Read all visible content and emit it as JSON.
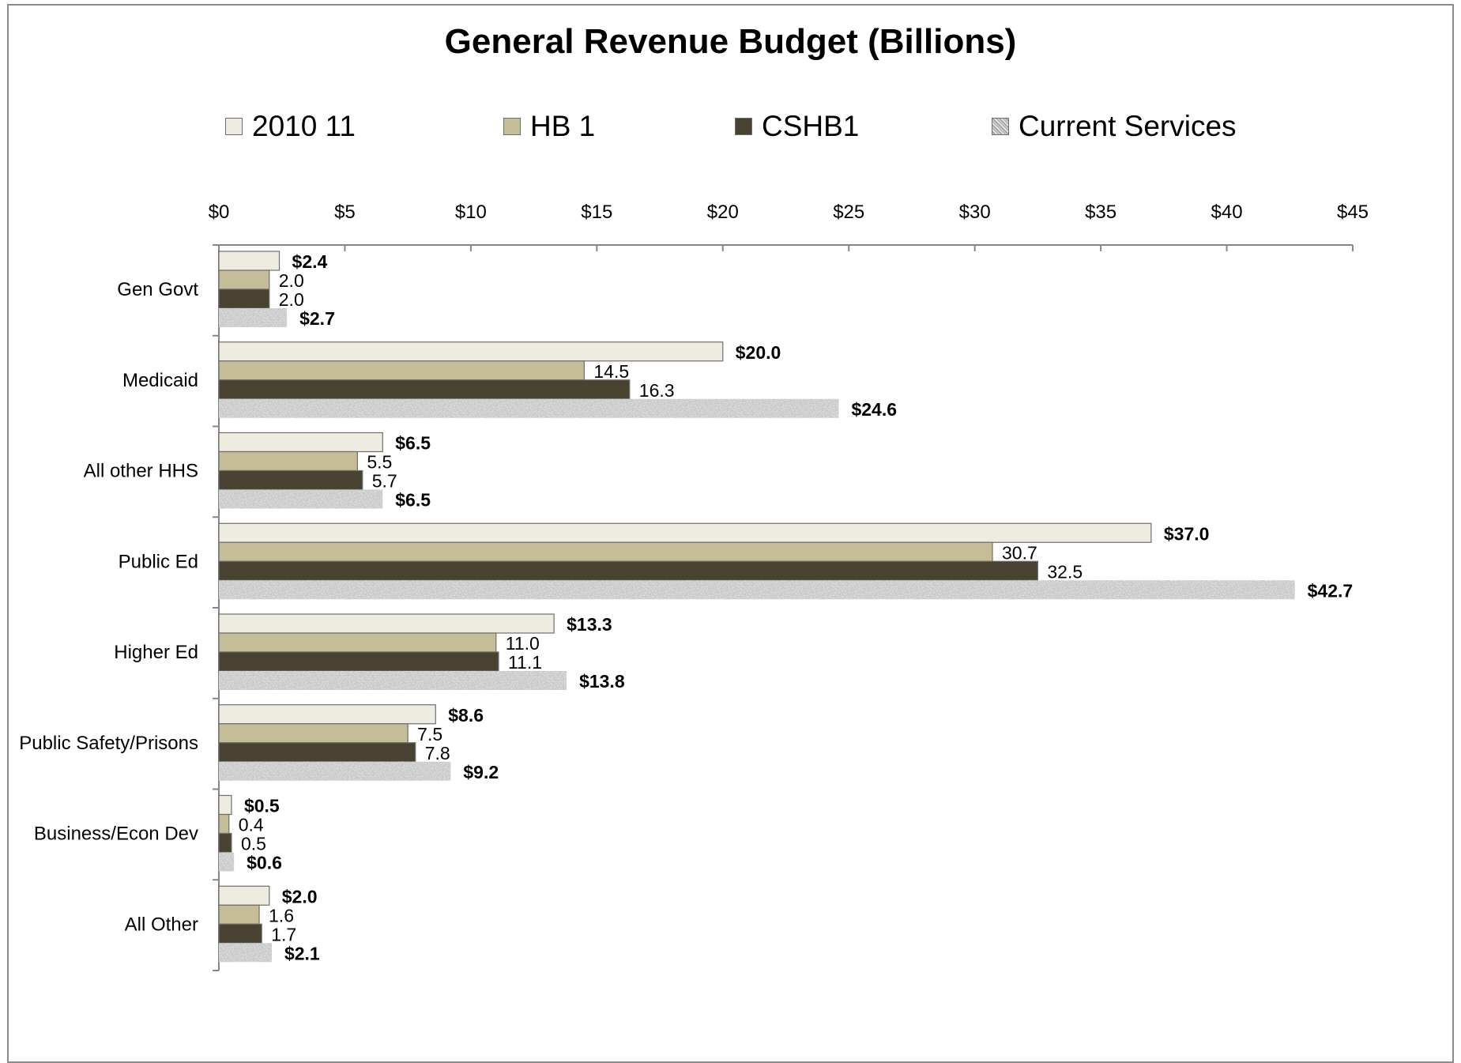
{
  "chart_data": {
    "type": "bar",
    "orientation": "horizontal",
    "title": "General Revenue Budget (Billions)",
    "xlim": [
      0,
      45
    ],
    "ticks": [
      "$0",
      "$5",
      "$10",
      "$15",
      "$20",
      "$25",
      "$30",
      "$35",
      "$40",
      "$45"
    ],
    "tick_values": [
      0,
      5,
      10,
      15,
      20,
      25,
      30,
      35,
      40,
      45
    ],
    "legend_position": "top",
    "categories": [
      "Gen Govt",
      "Medicaid",
      "All other HHS",
      "Public Ed",
      "Higher Ed",
      "Public Safety/Prisons",
      "Business/Econ Dev",
      "All Other"
    ],
    "series": [
      {
        "name": "2010 11",
        "color": "#eeece1",
        "pattern": "solid",
        "values": [
          2.4,
          20.0,
          6.5,
          37.0,
          13.3,
          8.6,
          0.5,
          2.0
        ],
        "labels": [
          "$2.4",
          "$20.0",
          "$6.5",
          "$37.0",
          "$13.3",
          "$8.6",
          "$0.5",
          "$2.0"
        ],
        "bold": true
      },
      {
        "name": "HB 1",
        "color": "#c4bd97",
        "pattern": "solid",
        "values": [
          2.0,
          14.5,
          5.5,
          30.7,
          11.0,
          7.5,
          0.4,
          1.6
        ],
        "labels": [
          "2.0",
          "14.5",
          "5.5",
          "30.7",
          "11.0",
          "7.5",
          "0.4",
          "1.6"
        ],
        "bold": false
      },
      {
        "name": "CSHB1",
        "color": "#4a4230",
        "pattern": "solid",
        "values": [
          2.0,
          16.3,
          5.7,
          32.5,
          11.1,
          7.8,
          0.5,
          1.7
        ],
        "labels": [
          "2.0",
          "16.3",
          "5.7",
          "32.5",
          "11.1",
          "7.8",
          "0.5",
          "1.7"
        ],
        "bold": false
      },
      {
        "name": "Current Services",
        "color": "#a8a8a8",
        "pattern": "granite",
        "values": [
          2.7,
          24.6,
          6.5,
          42.7,
          13.8,
          9.2,
          0.6,
          2.1
        ],
        "labels": [
          "$2.7",
          "$24.6",
          "$6.5",
          "$42.7",
          "$13.8",
          "$9.2",
          "$0.6",
          "$2.1"
        ],
        "bold": true
      }
    ]
  }
}
